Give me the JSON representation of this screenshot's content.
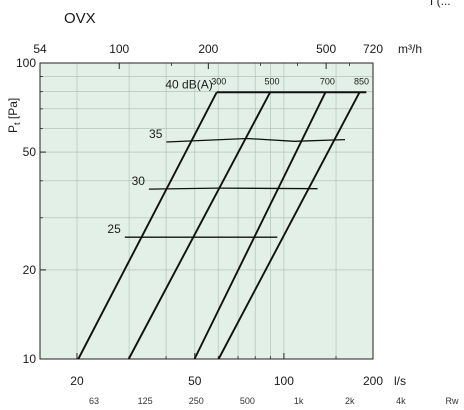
{
  "chart_data": {
    "type": "line",
    "title": "OVX",
    "top_right_fragment": "Γ(...",
    "x_bottom": {
      "label": "l/s",
      "scale": "log",
      "range": [
        15,
        200
      ],
      "ticks": [
        {
          "value": 20,
          "label": "20"
        },
        {
          "value": 50,
          "label": "50"
        },
        {
          "value": 100,
          "label": "100"
        },
        {
          "value": 200,
          "label": "200"
        }
      ],
      "minor": [
        30,
        40,
        60,
        70,
        80,
        90,
        150
      ]
    },
    "x_top": {
      "label": "m³/h",
      "ticks": [
        {
          "value": 15,
          "label": "54"
        },
        {
          "value": 27.78,
          "label": "100"
        },
        {
          "value": 55.56,
          "label": "200"
        },
        {
          "value": 138.89,
          "label": "500"
        },
        {
          "value": 200,
          "label": "720"
        }
      ],
      "minor": [
        41.67,
        83.33,
        111.11,
        166.67
      ]
    },
    "y": {
      "label": "Pt [Pa]",
      "label_main": "P",
      "label_sub": "t",
      "label_rest": " [Pa]",
      "scale": "log",
      "range": [
        10,
        100
      ],
      "ticks": [
        {
          "value": 10,
          "label": "10"
        },
        {
          "value": 20,
          "label": "20"
        },
        {
          "value": 50,
          "label": "50"
        },
        {
          "value": 100,
          "label": "100"
        }
      ],
      "minor": [
        30,
        40,
        60,
        70,
        80,
        90
      ]
    },
    "octave_bands": [
      "63",
      "125",
      "250",
      "500",
      "1k",
      "2k",
      "4k",
      "Rw"
    ],
    "flow_lines": [
      {
        "label": "300",
        "points": [
          [
            20.2,
            10
          ],
          [
            59.3,
            79.6
          ]
        ]
      },
      {
        "label": "500",
        "points": [
          [
            29.9,
            10
          ],
          [
            89.8,
            79.6
          ]
        ]
      },
      {
        "label": "700",
        "points": [
          [
            49.9,
            10
          ],
          [
            138.1,
            79.6
          ]
        ]
      },
      {
        "label": "850",
        "points": [
          [
            60.2,
            10
          ],
          [
            180.1,
            79.6
          ]
        ]
      }
    ],
    "sound_lines": [
      {
        "label": "40 dB(A)",
        "points": [
          [
            59.3,
            79.6
          ],
          [
            190.0,
            79.6
          ]
        ]
      },
      {
        "label": "35",
        "points": [
          [
            40.1,
            54.1
          ],
          [
            75.1,
            55.6
          ],
          [
            108.4,
            54.4
          ],
          [
            160.8,
            55.1
          ]
        ]
      },
      {
        "label": "30",
        "points": [
          [
            35.0,
            37.5
          ],
          [
            60.0,
            37.8
          ],
          [
            130.0,
            37.6
          ]
        ]
      },
      {
        "label": "25",
        "points": [
          [
            29.0,
            25.8
          ],
          [
            95.0,
            25.8
          ]
        ]
      }
    ],
    "grid": true
  }
}
